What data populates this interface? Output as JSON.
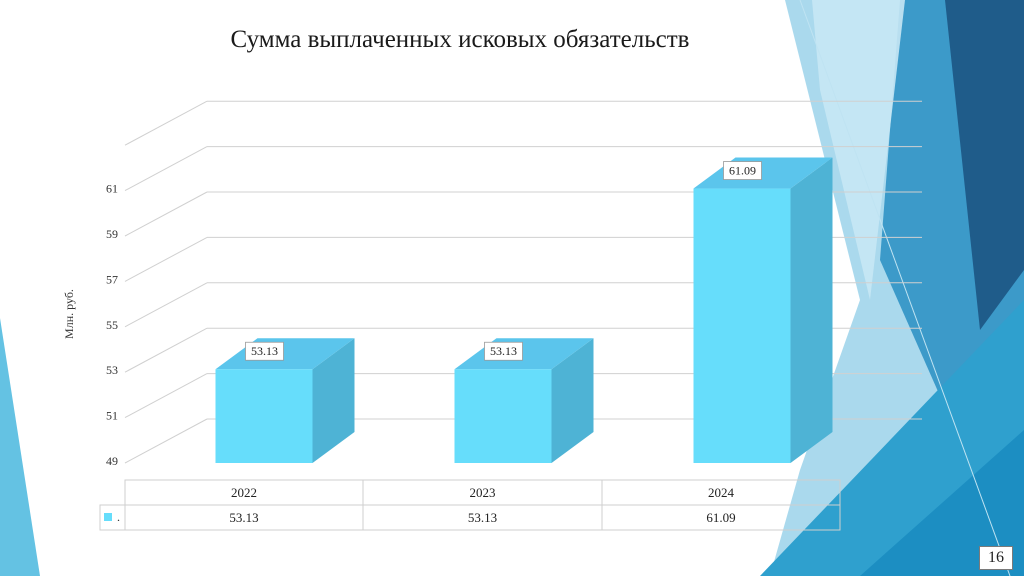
{
  "slide": {
    "title": "Сумма выплаченных исковых обязательств",
    "page_number": "16"
  },
  "colors": {
    "bar_front": "#66DDFB",
    "bar_side": "#4EB3D5",
    "bar_top": "#5BC5EC",
    "accent_dark": "#1F5C8A",
    "accent_mid": "#3C9AC9",
    "accent_light": "#9BD2EA"
  },
  "chart_data": {
    "type": "bar",
    "style": "3d-column",
    "title": "",
    "ylabel": "Млн. руб.",
    "xlabel": "",
    "categories": [
      "2022",
      "2023",
      "2024"
    ],
    "series": [
      {
        "name": ".",
        "values": [
          53.13,
          53.13,
          61.09
        ]
      }
    ],
    "y_ticks": [
      "49",
      "51",
      "53",
      "55",
      "57",
      "59",
      "61"
    ],
    "ylim": [
      49,
      63
    ],
    "data_labels": [
      "53.13",
      "53.13",
      "61.09"
    ],
    "grid": true,
    "data_table": true,
    "legend_in_table": "."
  }
}
